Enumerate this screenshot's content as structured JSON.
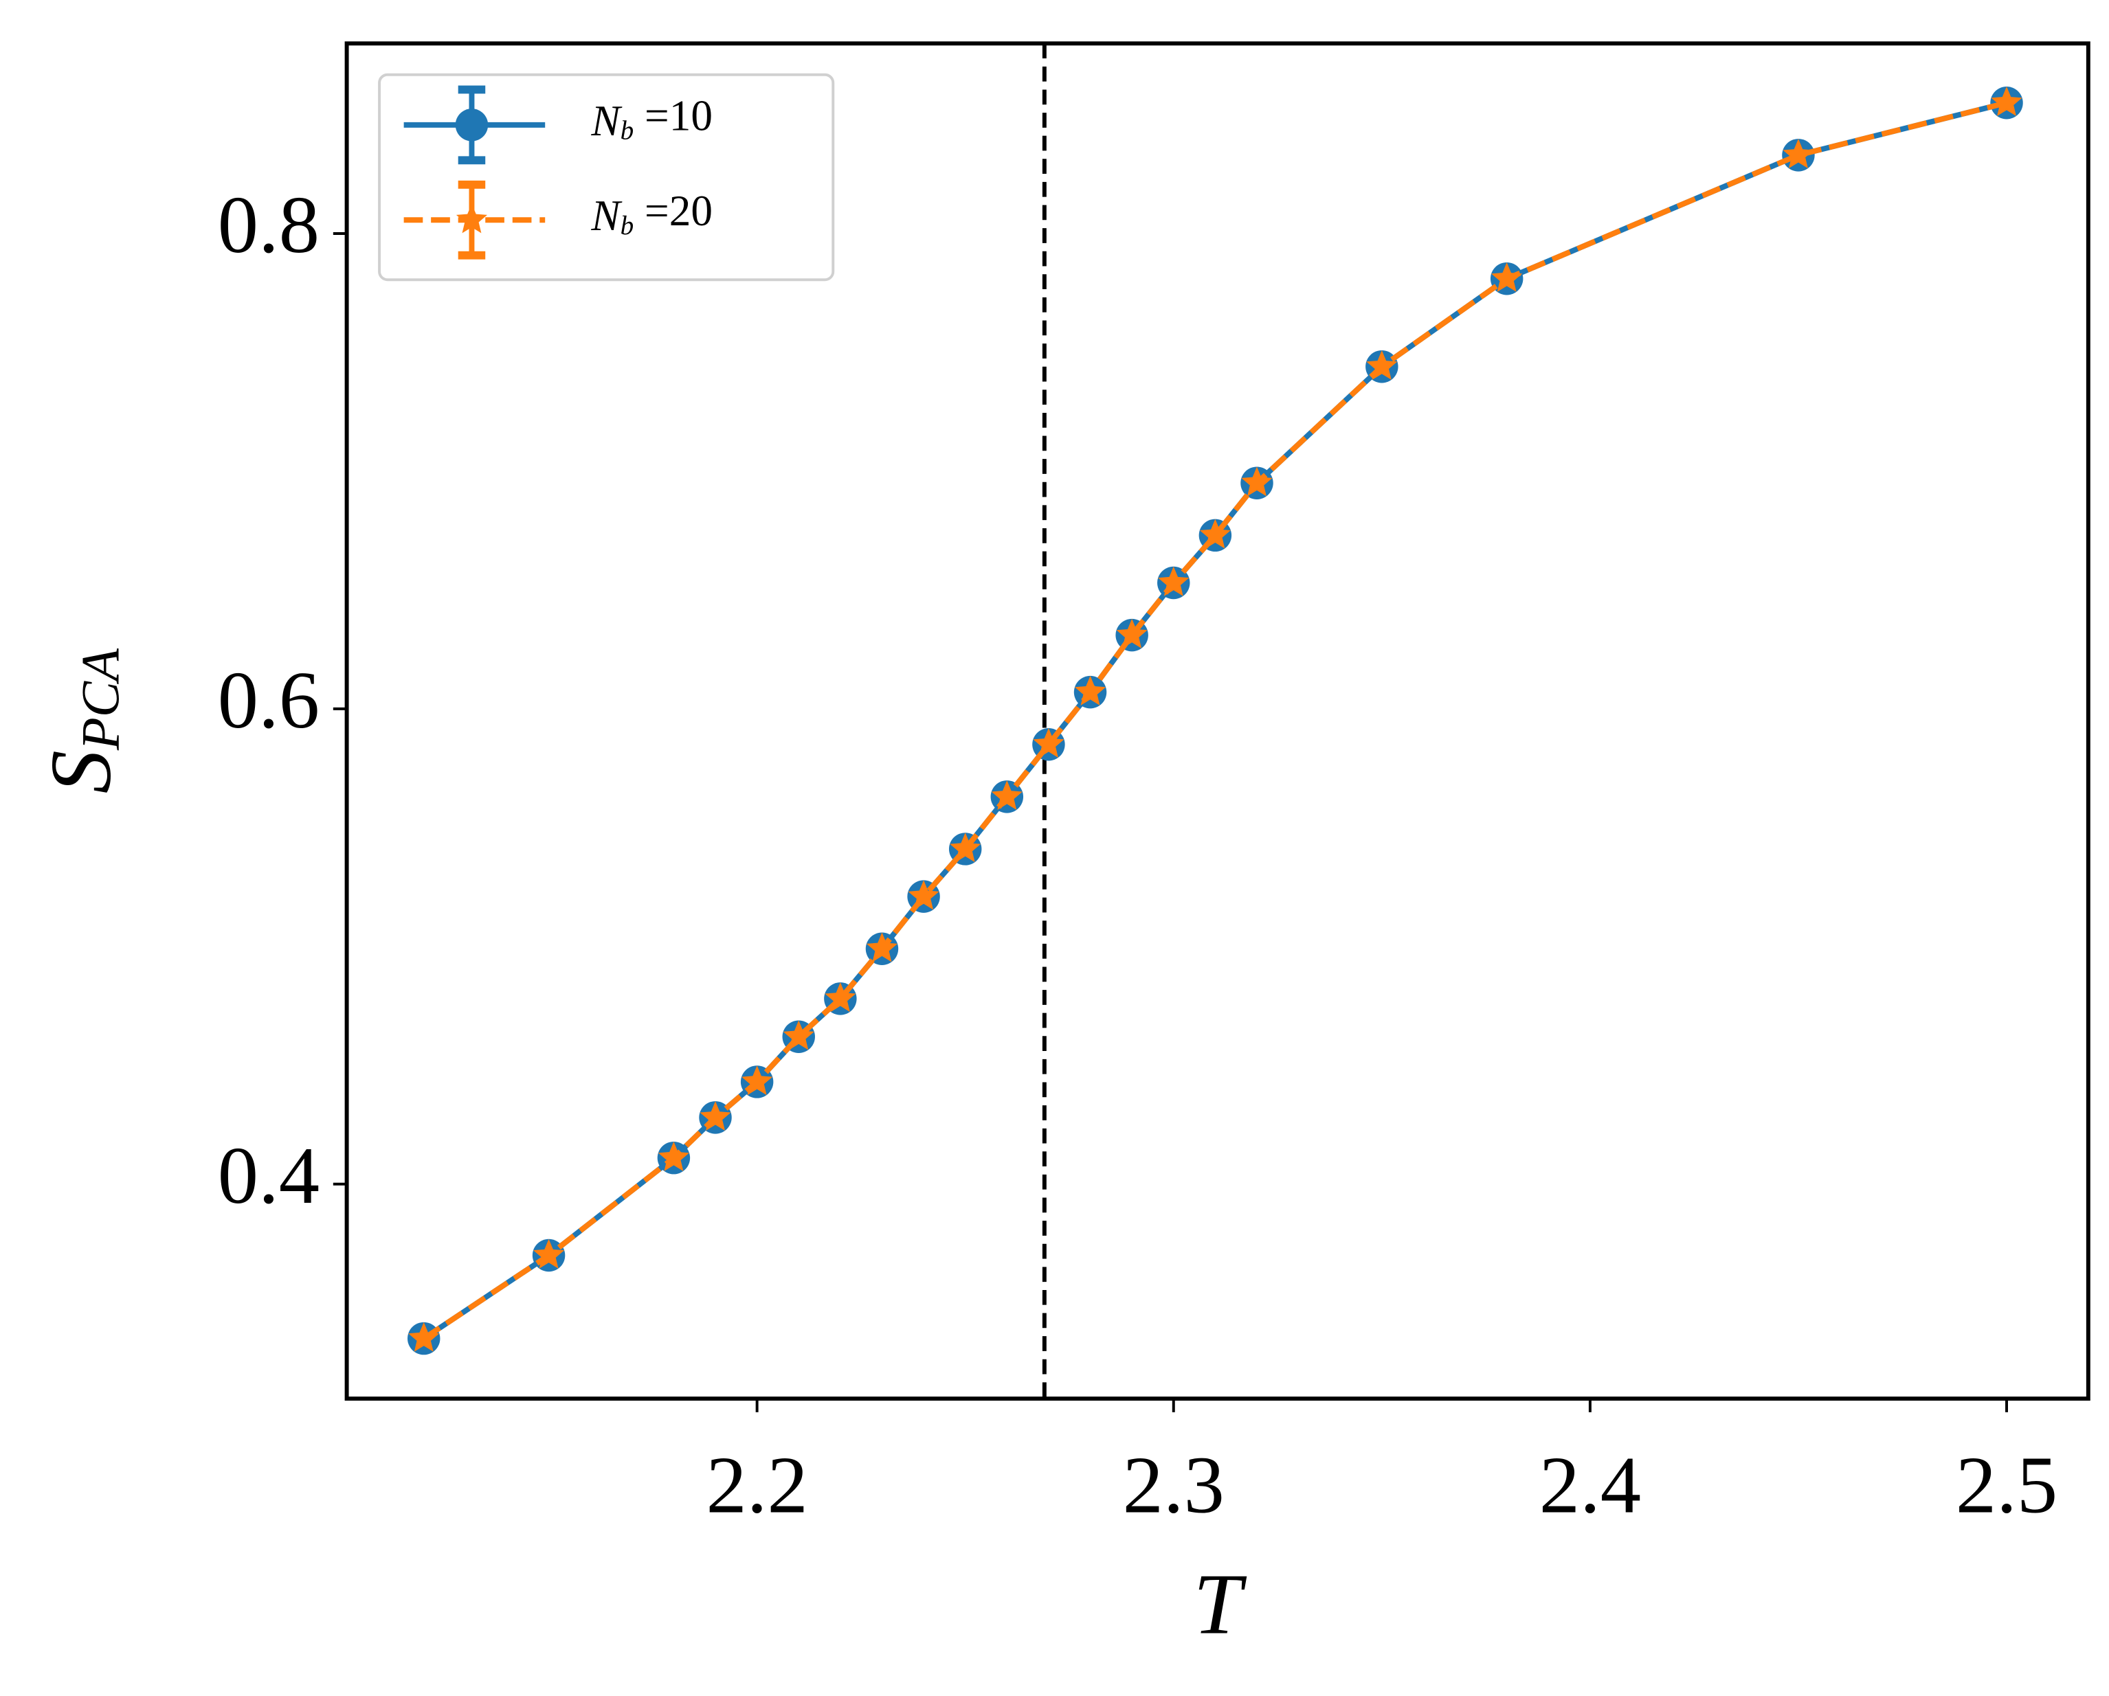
{
  "chart_data": {
    "type": "line",
    "x_label": "T",
    "y_label": "SPCA",
    "x": [
      2.12,
      2.15,
      2.18,
      2.19,
      2.2,
      2.21,
      2.22,
      2.23,
      2.24,
      2.25,
      2.26,
      2.27,
      2.28,
      2.29,
      2.3,
      2.31,
      2.32,
      2.35,
      2.38,
      2.45,
      2.5
    ],
    "series": [
      {
        "name": "Nb =10",
        "color": "#1f77b4",
        "dash": false,
        "marker": "circle",
        "values": [
          0.335,
          0.37,
          0.411,
          0.428,
          0.443,
          0.462,
          0.478,
          0.499,
          0.521,
          0.541,
          0.563,
          0.585,
          0.607,
          0.631,
          0.653,
          0.673,
          0.695,
          0.744,
          0.781,
          0.833,
          0.855
        ]
      },
      {
        "name": "Nb =20",
        "color": "#ff7f0e",
        "dash": true,
        "marker": "star",
        "values": [
          0.335,
          0.37,
          0.411,
          0.428,
          0.443,
          0.462,
          0.478,
          0.499,
          0.521,
          0.541,
          0.563,
          0.585,
          0.607,
          0.631,
          0.653,
          0.673,
          0.695,
          0.744,
          0.781,
          0.833,
          0.855
        ]
      }
    ],
    "vlines": [
      2.269
    ],
    "xlim": [
      2.1015,
      2.5196
    ],
    "ylim": [
      0.3097,
      0.88
    ],
    "xticks": [
      2.2,
      2.3,
      2.4,
      2.5
    ],
    "yticks": [
      0.4,
      0.6,
      0.8
    ],
    "grid": false,
    "legend": "upper left"
  }
}
